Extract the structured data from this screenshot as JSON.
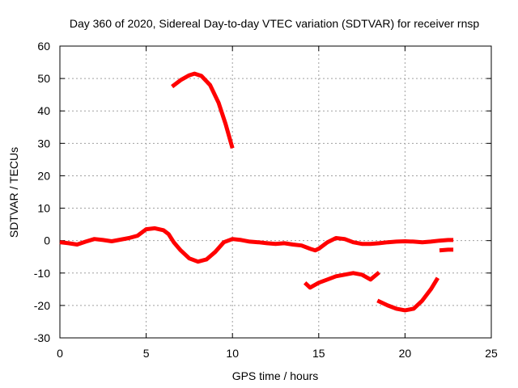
{
  "chart_data": {
    "type": "line",
    "title": "Day 360 of 2020, Sidereal Day-to-day VTEC variation (SDTVAR) for receiver rnsp",
    "xlabel": "GPS time / hours",
    "ylabel": "SDTVAR / TECUs",
    "xlim": [
      0,
      25
    ],
    "ylim": [
      -30,
      60
    ],
    "xticks": [
      0,
      5,
      10,
      15,
      20,
      25
    ],
    "yticks": [
      -30,
      -20,
      -10,
      0,
      10,
      20,
      30,
      40,
      50,
      60
    ],
    "grid": true,
    "line_color": "#ff0000",
    "series": [
      {
        "name": "main",
        "points": [
          [
            0.0,
            -0.5
          ],
          [
            0.5,
            -0.8
          ],
          [
            1.0,
            -1.2
          ],
          [
            1.5,
            -0.3
          ],
          [
            2.0,
            0.5
          ],
          [
            2.5,
            0.2
          ],
          [
            3.0,
            -0.2
          ],
          [
            3.5,
            0.3
          ],
          [
            4.0,
            0.8
          ],
          [
            4.5,
            1.5
          ],
          [
            5.0,
            3.5
          ],
          [
            5.5,
            3.8
          ],
          [
            6.0,
            3.2
          ],
          [
            6.3,
            2.0
          ],
          [
            6.6,
            -0.5
          ],
          [
            7.0,
            -3.0
          ],
          [
            7.5,
            -5.5
          ],
          [
            8.0,
            -6.5
          ],
          [
            8.5,
            -5.8
          ],
          [
            9.0,
            -3.5
          ],
          [
            9.5,
            -0.5
          ],
          [
            10.0,
            0.5
          ],
          [
            10.5,
            0.2
          ],
          [
            11.0,
            -0.3
          ],
          [
            11.5,
            -0.5
          ],
          [
            12.0,
            -0.8
          ],
          [
            12.5,
            -1.0
          ],
          [
            13.0,
            -0.8
          ],
          [
            13.5,
            -1.2
          ],
          [
            14.0,
            -1.5
          ],
          [
            14.5,
            -2.5
          ],
          [
            14.8,
            -3.0
          ],
          [
            15.0,
            -2.5
          ],
          [
            15.5,
            -0.5
          ],
          [
            16.0,
            0.8
          ],
          [
            16.5,
            0.5
          ],
          [
            17.0,
            -0.5
          ],
          [
            17.5,
            -1.0
          ],
          [
            18.0,
            -1.0
          ],
          [
            18.5,
            -0.8
          ],
          [
            19.0,
            -0.5
          ],
          [
            19.5,
            -0.3
          ],
          [
            20.0,
            -0.2
          ],
          [
            20.5,
            -0.3
          ],
          [
            21.0,
            -0.5
          ],
          [
            21.5,
            -0.3
          ],
          [
            22.0,
            0.0
          ],
          [
            22.5,
            0.2
          ],
          [
            22.8,
            0.2
          ]
        ]
      },
      {
        "name": "arc-high",
        "points": [
          [
            6.5,
            47.5
          ],
          [
            7.0,
            49.5
          ],
          [
            7.5,
            51.0
          ],
          [
            7.8,
            51.5
          ],
          [
            8.2,
            50.8
          ],
          [
            8.7,
            48.0
          ],
          [
            9.2,
            42.5
          ],
          [
            9.6,
            36.0
          ],
          [
            10.0,
            28.5
          ]
        ]
      },
      {
        "name": "tail-right",
        "points": [
          [
            22.0,
            -3.0
          ],
          [
            22.5,
            -2.8
          ],
          [
            22.8,
            -2.8
          ]
        ]
      },
      {
        "name": "segment-mid",
        "points": [
          [
            14.2,
            -13.0
          ],
          [
            14.5,
            -14.5
          ],
          [
            15.0,
            -13.0
          ],
          [
            15.5,
            -12.0
          ],
          [
            16.0,
            -11.0
          ],
          [
            16.5,
            -10.5
          ],
          [
            17.0,
            -10.0
          ],
          [
            17.5,
            -10.5
          ],
          [
            18.0,
            -12.0
          ],
          [
            18.5,
            -9.8
          ]
        ]
      },
      {
        "name": "bowl-late",
        "points": [
          [
            18.4,
            -18.5
          ],
          [
            19.0,
            -20.0
          ],
          [
            19.5,
            -21.0
          ],
          [
            20.0,
            -21.5
          ],
          [
            20.5,
            -21.0
          ],
          [
            21.0,
            -18.5
          ],
          [
            21.5,
            -15.0
          ],
          [
            21.9,
            -11.5
          ]
        ]
      }
    ]
  }
}
